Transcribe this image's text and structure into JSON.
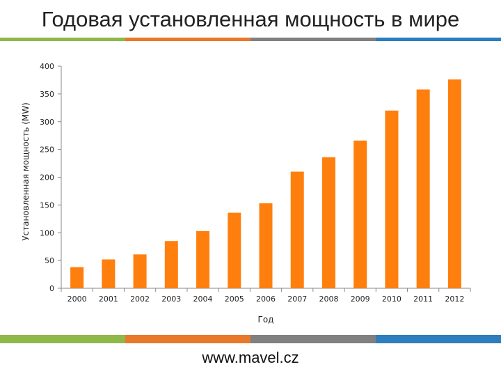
{
  "page": {
    "title": "Годовая установленная мощность в мире",
    "footer": "www.mavel.cz",
    "stripe_colors": [
      "#8fb84a",
      "#e8782a",
      "#808080",
      "#2e7dbd"
    ]
  },
  "chart_data": {
    "type": "bar",
    "title": "Годовая установленная мощность в мире",
    "xlabel": "Год",
    "ylabel": "Установленная мощность (MW)",
    "categories": [
      "2000",
      "2001",
      "2002",
      "2003",
      "2004",
      "2005",
      "2006",
      "2007",
      "2008",
      "2009",
      "2010",
      "2011",
      "2012"
    ],
    "values": [
      38,
      52,
      61,
      85,
      103,
      136,
      153,
      210,
      236,
      266,
      320,
      358,
      376
    ],
    "ylim": [
      0,
      400
    ],
    "yticks": [
      0,
      50,
      100,
      150,
      200,
      250,
      300,
      350,
      400
    ],
    "grid": false,
    "legend": "none",
    "bar_color": "#ff7f0e"
  }
}
